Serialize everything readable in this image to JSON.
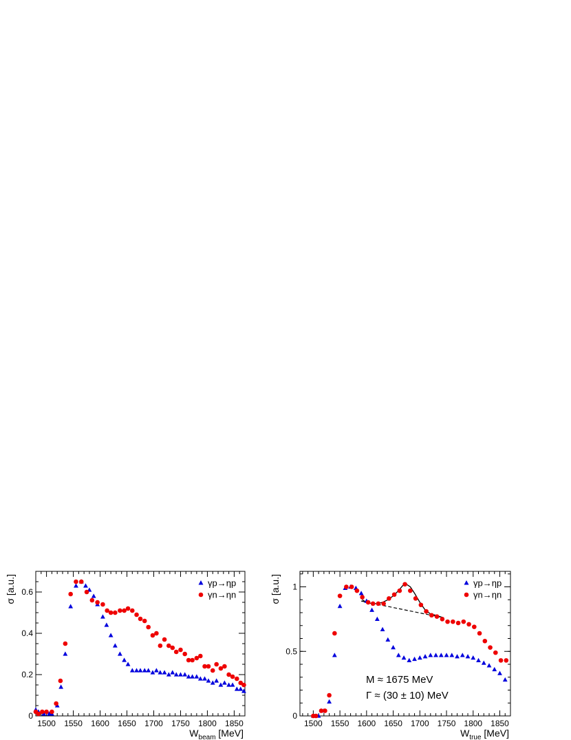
{
  "chart_data": [
    {
      "type": "scatter",
      "panel": "left",
      "xlabel_main": "W",
      "xlabel_sub": "beam",
      "xlabel_unit": " [MeV]",
      "ylabel": "σ [a.u.]",
      "xlim": [
        1480,
        1870
      ],
      "ylim": [
        0,
        0.7
      ],
      "xticks": [
        1500,
        1550,
        1600,
        1650,
        1700,
        1750,
        1800,
        1850
      ],
      "yticks": [
        0,
        0.2,
        0.4,
        0.6
      ],
      "ytick_labels": [
        "0",
        "0.2",
        "0.4",
        "0.6"
      ],
      "legend_position": "top-right",
      "series": [
        {
          "name": "γp→ηp",
          "marker": "triangle",
          "color": "#0000dd",
          "points": [
            [
              1480,
              0.03
            ],
            [
              1485,
              0.02
            ],
            [
              1495,
              0.01
            ],
            [
              1505,
              0.01
            ],
            [
              1510,
              0.01
            ],
            [
              1520,
              0.05
            ],
            [
              1527,
              0.14
            ],
            [
              1535,
              0.3
            ],
            [
              1545,
              0.53
            ],
            [
              1555,
              0.63
            ],
            [
              1565,
              0.65
            ],
            [
              1573,
              0.63
            ],
            [
              1580,
              0.61
            ],
            [
              1588,
              0.58
            ],
            [
              1595,
              0.54
            ],
            [
              1605,
              0.48
            ],
            [
              1612,
              0.44
            ],
            [
              1620,
              0.39
            ],
            [
              1628,
              0.34
            ],
            [
              1637,
              0.3
            ],
            [
              1645,
              0.27
            ],
            [
              1652,
              0.25
            ],
            [
              1660,
              0.22
            ],
            [
              1668,
              0.22
            ],
            [
              1675,
              0.22
            ],
            [
              1683,
              0.22
            ],
            [
              1690,
              0.22
            ],
            [
              1698,
              0.21
            ],
            [
              1705,
              0.22
            ],
            [
              1712,
              0.21
            ],
            [
              1720,
              0.21
            ],
            [
              1728,
              0.2
            ],
            [
              1735,
              0.21
            ],
            [
              1742,
              0.2
            ],
            [
              1750,
              0.2
            ],
            [
              1758,
              0.2
            ],
            [
              1765,
              0.19
            ],
            [
              1772,
              0.19
            ],
            [
              1780,
              0.19
            ],
            [
              1787,
              0.18
            ],
            [
              1795,
              0.18
            ],
            [
              1802,
              0.17
            ],
            [
              1810,
              0.16
            ],
            [
              1817,
              0.17
            ],
            [
              1825,
              0.15
            ],
            [
              1832,
              0.16
            ],
            [
              1840,
              0.15
            ],
            [
              1847,
              0.15
            ],
            [
              1855,
              0.13
            ],
            [
              1862,
              0.13
            ],
            [
              1868,
              0.12
            ]
          ]
        },
        {
          "name": "γn→ηn",
          "marker": "circle",
          "color": "#ee0000",
          "points": [
            [
              1480,
              0.02
            ],
            [
              1485,
              0.01
            ],
            [
              1492,
              0.02
            ],
            [
              1500,
              0.02
            ],
            [
              1510,
              0.02
            ],
            [
              1518,
              0.06
            ],
            [
              1526,
              0.17
            ],
            [
              1535,
              0.35
            ],
            [
              1545,
              0.59
            ],
            [
              1555,
              0.65
            ],
            [
              1565,
              0.65
            ],
            [
              1575,
              0.6
            ],
            [
              1585,
              0.56
            ],
            [
              1595,
              0.55
            ],
            [
              1605,
              0.54
            ],
            [
              1613,
              0.51
            ],
            [
              1620,
              0.5
            ],
            [
              1628,
              0.5
            ],
            [
              1637,
              0.51
            ],
            [
              1645,
              0.51
            ],
            [
              1652,
              0.52
            ],
            [
              1660,
              0.51
            ],
            [
              1668,
              0.49
            ],
            [
              1675,
              0.47
            ],
            [
              1683,
              0.46
            ],
            [
              1690,
              0.43
            ],
            [
              1698,
              0.39
            ],
            [
              1705,
              0.4
            ],
            [
              1712,
              0.34
            ],
            [
              1720,
              0.37
            ],
            [
              1728,
              0.34
            ],
            [
              1735,
              0.33
            ],
            [
              1742,
              0.31
            ],
            [
              1750,
              0.32
            ],
            [
              1758,
              0.3
            ],
            [
              1765,
              0.27
            ],
            [
              1772,
              0.27
            ],
            [
              1780,
              0.28
            ],
            [
              1787,
              0.29
            ],
            [
              1795,
              0.24
            ],
            [
              1802,
              0.24
            ],
            [
              1810,
              0.22
            ],
            [
              1817,
              0.25
            ],
            [
              1825,
              0.23
            ],
            [
              1832,
              0.24
            ],
            [
              1840,
              0.2
            ],
            [
              1847,
              0.19
            ],
            [
              1855,
              0.18
            ],
            [
              1862,
              0.16
            ],
            [
              1868,
              0.15
            ]
          ]
        }
      ]
    },
    {
      "type": "scatter",
      "panel": "right",
      "xlabel_main": "W",
      "xlabel_sub": "true",
      "xlabel_unit": " [MeV]",
      "ylabel": "σ [a.u.]",
      "xlim": [
        1475,
        1870
      ],
      "ylim": [
        0,
        1.12
      ],
      "xticks": [
        1500,
        1550,
        1600,
        1650,
        1700,
        1750,
        1800,
        1850
      ],
      "yticks": [
        0,
        0.5,
        1
      ],
      "ytick_labels": [
        "0",
        "0.5",
        "1"
      ],
      "legend_position": "top-right",
      "annotations": [
        "M ≈ 1675 MeV",
        "Γ ≈ (30 ± 10) MeV"
      ],
      "series": [
        {
          "name": "γp→ηp",
          "marker": "triangle",
          "color": "#0000dd",
          "points": [
            [
              1500,
              0.0
            ],
            [
              1510,
              0.0
            ],
            [
              1520,
              0.04
            ],
            [
              1530,
              0.11
            ],
            [
              1540,
              0.47
            ],
            [
              1550,
              0.85
            ],
            [
              1560,
              0.99
            ],
            [
              1570,
              1.0
            ],
            [
              1580,
              0.99
            ],
            [
              1590,
              0.95
            ],
            [
              1600,
              0.89
            ],
            [
              1610,
              0.82
            ],
            [
              1620,
              0.75
            ],
            [
              1630,
              0.67
            ],
            [
              1640,
              0.59
            ],
            [
              1650,
              0.53
            ],
            [
              1660,
              0.47
            ],
            [
              1670,
              0.45
            ],
            [
              1680,
              0.43
            ],
            [
              1690,
              0.44
            ],
            [
              1700,
              0.45
            ],
            [
              1710,
              0.46
            ],
            [
              1720,
              0.47
            ],
            [
              1730,
              0.47
            ],
            [
              1740,
              0.47
            ],
            [
              1750,
              0.47
            ],
            [
              1760,
              0.47
            ],
            [
              1770,
              0.46
            ],
            [
              1780,
              0.47
            ],
            [
              1790,
              0.46
            ],
            [
              1800,
              0.45
            ],
            [
              1810,
              0.43
            ],
            [
              1820,
              0.41
            ],
            [
              1830,
              0.39
            ],
            [
              1840,
              0.36
            ],
            [
              1850,
              0.33
            ],
            [
              1860,
              0.28
            ]
          ]
        },
        {
          "name": "γn→ηn",
          "marker": "circle",
          "color": "#ee0000",
          "points": [
            [
              1500,
              0.0
            ],
            [
              1505,
              0.0
            ],
            [
              1515,
              0.04
            ],
            [
              1522,
              0.04
            ],
            [
              1530,
              0.16
            ],
            [
              1540,
              0.64
            ],
            [
              1550,
              0.93
            ],
            [
              1562,
              1.0
            ],
            [
              1572,
              1.0
            ],
            [
              1582,
              0.97
            ],
            [
              1592,
              0.92
            ],
            [
              1603,
              0.88
            ],
            [
              1612,
              0.87
            ],
            [
              1622,
              0.87
            ],
            [
              1632,
              0.87
            ],
            [
              1642,
              0.91
            ],
            [
              1652,
              0.94
            ],
            [
              1662,
              0.97
            ],
            [
              1672,
              1.02
            ],
            [
              1682,
              0.97
            ],
            [
              1692,
              0.91
            ],
            [
              1702,
              0.86
            ],
            [
              1712,
              0.81
            ],
            [
              1722,
              0.78
            ],
            [
              1732,
              0.77
            ],
            [
              1742,
              0.75
            ],
            [
              1752,
              0.73
            ],
            [
              1762,
              0.73
            ],
            [
              1772,
              0.72
            ],
            [
              1782,
              0.73
            ],
            [
              1792,
              0.71
            ],
            [
              1802,
              0.69
            ],
            [
              1812,
              0.64
            ],
            [
              1822,
              0.58
            ],
            [
              1832,
              0.53
            ],
            [
              1842,
              0.49
            ],
            [
              1852,
              0.43
            ],
            [
              1862,
              0.43
            ]
          ]
        }
      ],
      "fit_curve": [
        [
          1592,
          0.9
        ],
        [
          1600,
          0.88
        ],
        [
          1610,
          0.87
        ],
        [
          1620,
          0.87
        ],
        [
          1630,
          0.88
        ],
        [
          1640,
          0.9
        ],
        [
          1650,
          0.93
        ],
        [
          1660,
          0.97
        ],
        [
          1668,
          1.01
        ],
        [
          1675,
          1.02
        ],
        [
          1682,
          1.0
        ],
        [
          1690,
          0.95
        ],
        [
          1700,
          0.88
        ],
        [
          1710,
          0.82
        ],
        [
          1720,
          0.79
        ],
        [
          1730,
          0.78
        ],
        [
          1745,
          0.76
        ]
      ],
      "background_line": [
        [
          1590,
          0.89
        ],
        [
          1745,
          0.76
        ]
      ]
    }
  ]
}
